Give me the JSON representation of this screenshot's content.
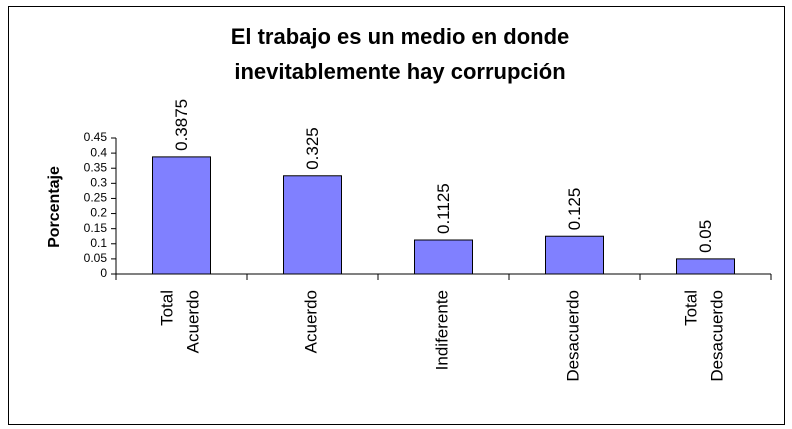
{
  "chart_data": {
    "type": "bar",
    "title": "El trabajo es un medio en donde inevitablemente hay corrupción",
    "y_label": "Porcentaje",
    "categories": [
      "Total Acuerdo",
      "Acuerdo",
      "Indiferente",
      "Desacuerdo",
      "Total Desacuerdo"
    ],
    "values": [
      0.3875,
      0.325,
      0.1125,
      0.125,
      0.05
    ],
    "color": "#8080ff",
    "ylim": [
      0,
      0.45
    ],
    "yticks": [
      0,
      0.05,
      0.1,
      0.15,
      0.2,
      0.25,
      0.3,
      0.35,
      0.4,
      0.45
    ],
    "grid": false
  }
}
